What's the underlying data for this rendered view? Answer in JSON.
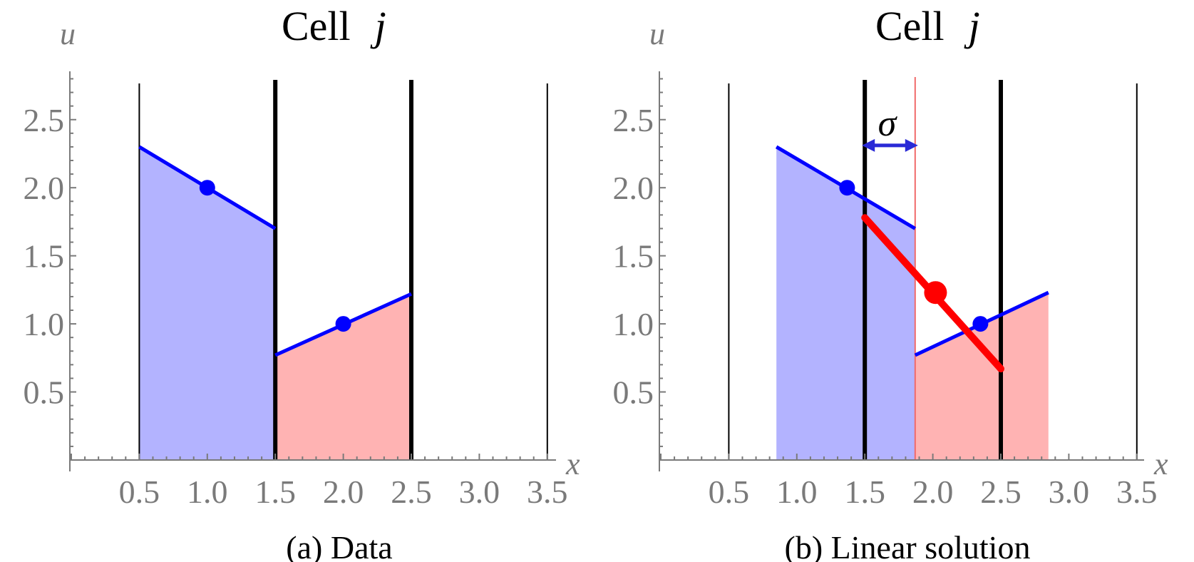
{
  "chart_data": [
    {
      "type": "line",
      "panel": "a",
      "title": "Cell",
      "title_var": "j",
      "caption": "(a) Data",
      "xlabel": "x",
      "ylabel": "u",
      "xlim": [
        0.0,
        3.5
      ],
      "ylim": [
        0.0,
        2.8
      ],
      "xticks": [
        "0.5",
        "1.0",
        "1.5",
        "2.0",
        "2.5",
        "3.0",
        "3.5"
      ],
      "yticks": [
        "0.5",
        "1.0",
        "1.5",
        "2.0",
        "2.5"
      ],
      "cell_boundaries": [
        {
          "x": 0.5,
          "bold": false
        },
        {
          "x": 1.5,
          "bold": true
        },
        {
          "x": 2.5,
          "bold": true
        },
        {
          "x": 3.5,
          "bold": false
        }
      ],
      "series": [
        {
          "color": "#0000ff",
          "fill": "#b3b3ff",
          "x": [
            0.5,
            1.5
          ],
          "y": [
            2.3,
            1.7
          ]
        },
        {
          "color": "#0000ff",
          "fill": "#ffb3b3",
          "x": [
            1.5,
            2.5
          ],
          "y": [
            0.77,
            1.22
          ]
        }
      ],
      "points": [
        {
          "x": 1.0,
          "y": 2.0,
          "color": "#0000ff",
          "size": "small"
        },
        {
          "x": 2.0,
          "y": 1.0,
          "color": "#0000ff",
          "size": "small"
        }
      ]
    },
    {
      "type": "line",
      "panel": "b",
      "title": "Cell",
      "title_var": "j",
      "caption": "(b) Linear solution",
      "xlabel": "x",
      "ylabel": "u",
      "xlim": [
        0.0,
        3.5
      ],
      "ylim": [
        0.0,
        2.8
      ],
      "xticks": [
        "0.5",
        "1.0",
        "1.5",
        "2.0",
        "2.5",
        "3.0",
        "3.5"
      ],
      "yticks": [
        "0.5",
        "1.0",
        "1.5",
        "2.0",
        "2.5"
      ],
      "cell_boundaries": [
        {
          "x": 0.5,
          "bold": false
        },
        {
          "x": 1.5,
          "bold": true
        },
        {
          "x": 2.5,
          "bold": true
        },
        {
          "x": 3.5,
          "bold": false
        }
      ],
      "shock_line_x": 1.87,
      "sigma_label": "σ",
      "sigma_arrow": [
        1.5,
        1.87
      ],
      "sigma_arrow_y": 2.3,
      "series": [
        {
          "color": "#0000ff",
          "fill": "#b3b3ff",
          "x": [
            0.85,
            1.87
          ],
          "y": [
            2.3,
            1.7
          ]
        },
        {
          "color": "#0000ff",
          "fill": "#ffb3b3",
          "x": [
            1.87,
            2.85
          ],
          "y": [
            0.77,
            1.23
          ]
        },
        {
          "color": "#ff0000",
          "fill": "none",
          "x": [
            1.5,
            2.5
          ],
          "y": [
            1.78,
            0.67
          ]
        }
      ],
      "points": [
        {
          "x": 1.37,
          "y": 2.0,
          "color": "#0000ff",
          "size": "small"
        },
        {
          "x": 2.35,
          "y": 1.0,
          "color": "#0000ff",
          "size": "small"
        },
        {
          "x": 2.02,
          "y": 1.23,
          "color": "#ff0000",
          "size": "large"
        }
      ]
    }
  ]
}
